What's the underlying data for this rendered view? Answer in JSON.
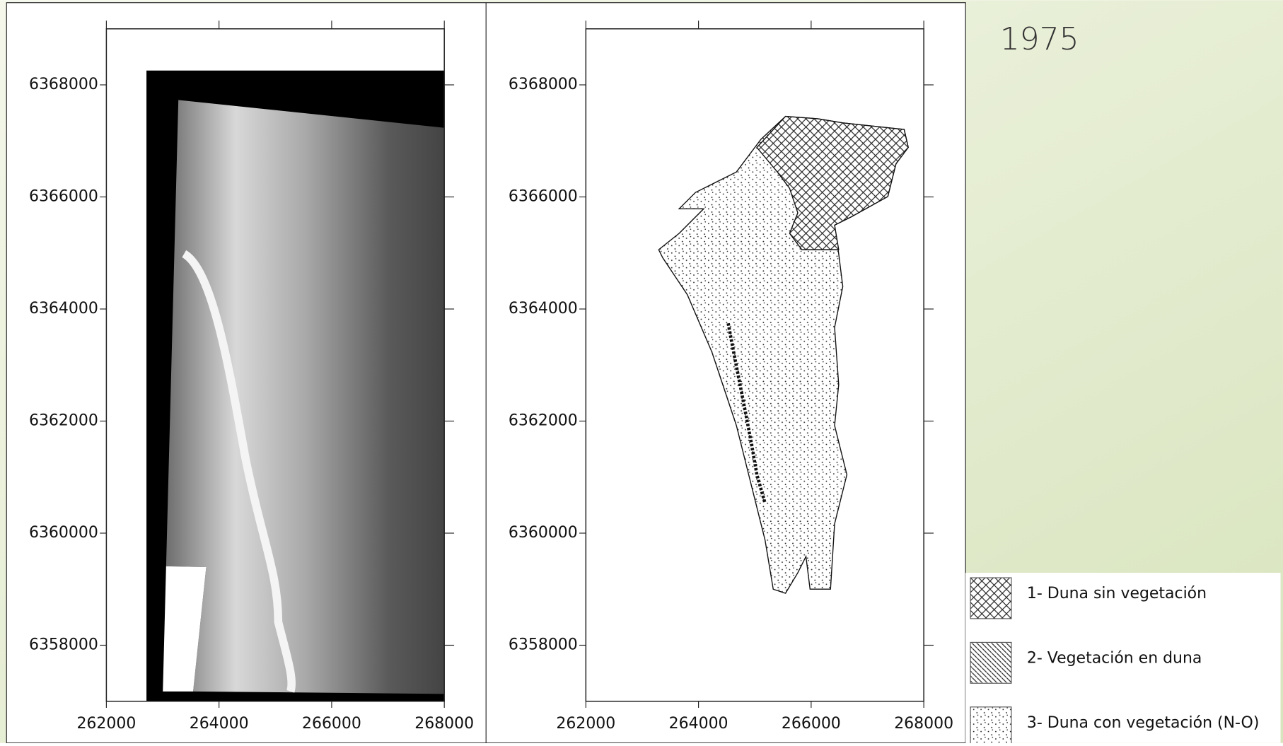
{
  "year": "1975",
  "panels": [
    {
      "xlim": [
        262000,
        268000
      ],
      "ylim": [
        6357000,
        6369000
      ],
      "xticks": [
        262000,
        264000,
        266000,
        268000
      ],
      "yticks": [
        6358000,
        6360000,
        6362000,
        6364000,
        6366000,
        6368000
      ]
    },
    {
      "xlim": [
        262000,
        268000
      ],
      "ylim": [
        6357000,
        6369000
      ],
      "xticks": [
        262000,
        264000,
        266000,
        268000
      ],
      "yticks": [
        6358000,
        6360000,
        6362000,
        6364000,
        6366000,
        6368000
      ]
    }
  ],
  "legend": [
    "1- Duna sin vegetación",
    "2- Vegetación en duna",
    "3- Duna con vegetación (N-O)"
  ]
}
